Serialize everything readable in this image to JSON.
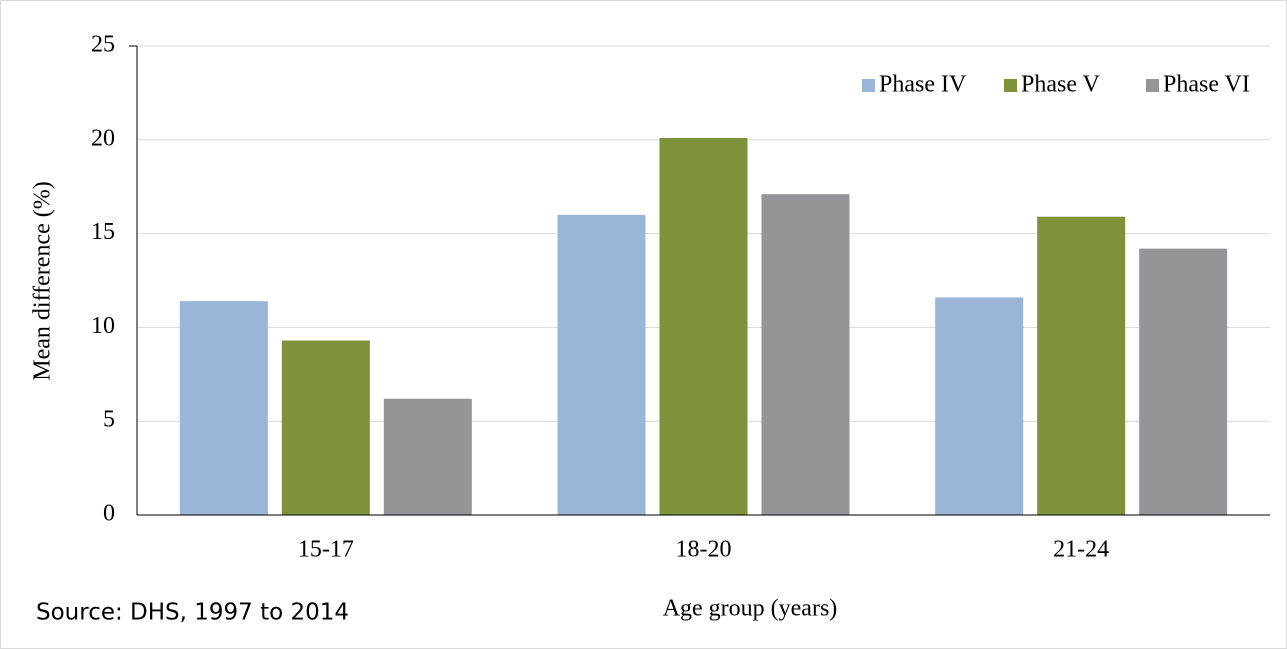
{
  "chart_data": {
    "type": "bar",
    "categories": [
      "15-17",
      "18-20",
      "21-24"
    ],
    "series": [
      {
        "name": "Phase IV",
        "color": "#9bb5d9",
        "values": [
          11.4,
          16.0,
          11.6
        ]
      },
      {
        "name": "Phase V",
        "color": "#7d923a",
        "values": [
          9.3,
          20.1,
          15.9
        ]
      },
      {
        "name": "Phase VI",
        "color": "#939598",
        "values": [
          6.2,
          17.1,
          14.2
        ]
      }
    ],
    "ylim": [
      0,
      25
    ],
    "yticks": [
      0,
      5,
      10,
      15,
      20,
      25
    ],
    "grid": true,
    "ylabel": "Mean difference (%)",
    "xlabel": "Age group (years)",
    "legend": "top-right",
    "source": "Source: DHS, 1997 to 2014"
  }
}
